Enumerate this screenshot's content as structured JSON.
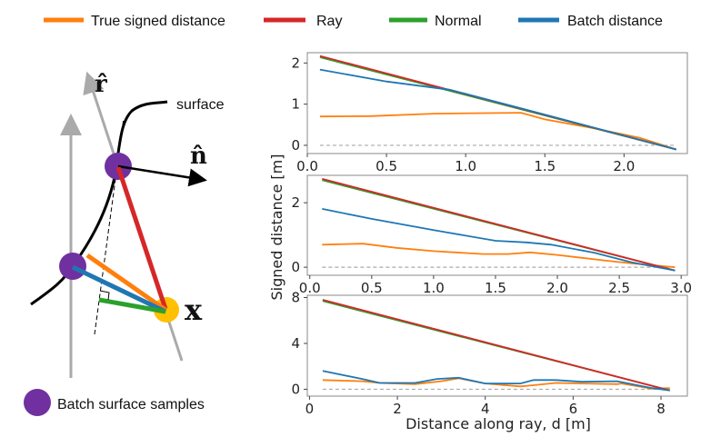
{
  "legend": [
    {
      "label": "True signed distance",
      "color": "#ff7f0e"
    },
    {
      "label": "Ray",
      "color": "#d62728"
    },
    {
      "label": "Normal",
      "color": "#2ca02c"
    },
    {
      "label": "Batch distance",
      "color": "#1f77b4"
    }
  ],
  "diagram": {
    "surface_label": "surface",
    "ray_label": "r̂",
    "normal_label": "n̂",
    "point_label": "x",
    "samples_legend": "Batch surface samples",
    "colors": {
      "sample": "#7030a0",
      "point": "#ffc000",
      "ray_axis": "#aaaaaa",
      "surface": "#000000"
    }
  },
  "shared_ylabel": "Signed distance [m]",
  "shared_xlabel": "Distance along ray, d [m]",
  "chart_data": [
    {
      "type": "line",
      "xlim": [
        0,
        2.4
      ],
      "ylim": [
        -0.2,
        2.25
      ],
      "xticks": [
        "0.0",
        "0.5",
        "1.0",
        "1.5",
        "2.0"
      ],
      "xtick_values": [
        0,
        0.5,
        1.0,
        1.5,
        2.0
      ],
      "yticks": [
        "0",
        "1",
        "2"
      ],
      "ytick_values": [
        0,
        1,
        2
      ],
      "series": [
        {
          "name": "True signed distance",
          "color": "#ff7f0e",
          "x": [
            0.08,
            0.4,
            0.8,
            1.35,
            1.5,
            1.8,
            2.1,
            2.33
          ],
          "y": [
            0.7,
            0.71,
            0.77,
            0.79,
            0.63,
            0.42,
            0.18,
            -0.1
          ]
        },
        {
          "name": "Normal",
          "color": "#2ca02c",
          "x": [
            0.08,
            2.33
          ],
          "y": [
            2.14,
            -0.1
          ]
        },
        {
          "name": "Ray",
          "color": "#d62728",
          "x": [
            0.08,
            2.33
          ],
          "y": [
            2.17,
            -0.1
          ]
        },
        {
          "name": "Batch distance",
          "color": "#1f77b4",
          "x": [
            0.08,
            0.5,
            0.9,
            1.35,
            2.33
          ],
          "y": [
            1.84,
            1.55,
            1.35,
            0.9,
            -0.1
          ]
        }
      ],
      "zero_line": {
        "x": [
          0.08,
          2.33
        ]
      }
    },
    {
      "type": "line",
      "xlim": [
        -0.02,
        3.05
      ],
      "ylim": [
        -0.25,
        2.85
      ],
      "xticks": [
        "0.0",
        "0.5",
        "1.0",
        "1.5",
        "2.0",
        "2.5",
        "3.0"
      ],
      "xtick_values": [
        0,
        0.5,
        1.0,
        1.5,
        2.0,
        2.5,
        3.0
      ],
      "yticks": [
        "0",
        "2"
      ],
      "ytick_values": [
        0,
        2
      ],
      "series": [
        {
          "name": "True signed distance",
          "color": "#ff7f0e",
          "x": [
            0.1,
            0.43,
            0.7,
            1.0,
            1.4,
            1.6,
            1.78,
            2.0,
            2.4,
            2.6,
            2.95
          ],
          "y": [
            0.7,
            0.73,
            0.6,
            0.5,
            0.41,
            0.41,
            0.46,
            0.38,
            0.2,
            0.12,
            0.0
          ]
        },
        {
          "name": "Normal",
          "color": "#2ca02c",
          "x": [
            0.1,
            2.95
          ],
          "y": [
            2.7,
            -0.1
          ]
        },
        {
          "name": "Ray",
          "color": "#d62728",
          "x": [
            0.1,
            2.95
          ],
          "y": [
            2.74,
            -0.1
          ]
        },
        {
          "name": "Batch distance",
          "color": "#1f77b4",
          "x": [
            0.1,
            0.5,
            1.0,
            1.5,
            1.75,
            1.95,
            2.3,
            2.6,
            2.95
          ],
          "y": [
            1.81,
            1.5,
            1.15,
            0.82,
            0.77,
            0.7,
            0.45,
            0.15,
            -0.1
          ]
        }
      ],
      "zero_line": {
        "x": [
          0.1,
          2.95
        ]
      }
    },
    {
      "type": "line",
      "xlim": [
        -0.05,
        8.6
      ],
      "ylim": [
        -0.6,
        8.2
      ],
      "xticks": [
        "0",
        "2",
        "4",
        "6",
        "8"
      ],
      "xtick_values": [
        0,
        2,
        4,
        6,
        8
      ],
      "yticks": [
        "0",
        "4",
        "8"
      ],
      "ytick_values": [
        0,
        4,
        8
      ],
      "series": [
        {
          "name": "True signed distance",
          "color": "#ff7f0e",
          "x": [
            0.3,
            1.2,
            1.6,
            2.4,
            3.0,
            3.4,
            4.0,
            4.8,
            5.1,
            5.6,
            6.2,
            7.0,
            7.1,
            7.8,
            8.2
          ],
          "y": [
            0.8,
            0.7,
            0.55,
            0.45,
            0.7,
            0.95,
            0.5,
            0.25,
            0.35,
            0.55,
            0.5,
            0.45,
            0.5,
            0.05,
            0.1
          ]
        },
        {
          "name": "Normal",
          "color": "#2ca02c",
          "x": [
            0.3,
            8.2
          ],
          "y": [
            7.7,
            -0.1
          ]
        },
        {
          "name": "Ray",
          "color": "#d62728",
          "x": [
            0.3,
            8.2
          ],
          "y": [
            7.8,
            -0.1
          ]
        },
        {
          "name": "Batch distance",
          "color": "#1f77b4",
          "x": [
            0.3,
            1.2,
            1.6,
            2.4,
            2.9,
            3.4,
            4.0,
            4.8,
            5.1,
            5.6,
            6.2,
            7.0,
            7.8,
            8.2
          ],
          "y": [
            1.6,
            0.9,
            0.55,
            0.55,
            0.9,
            1.0,
            0.5,
            0.5,
            0.8,
            0.8,
            0.65,
            0.7,
            0.1,
            -0.1
          ]
        }
      ],
      "zero_line": {
        "x": [
          0.3,
          8.2
        ]
      }
    }
  ]
}
